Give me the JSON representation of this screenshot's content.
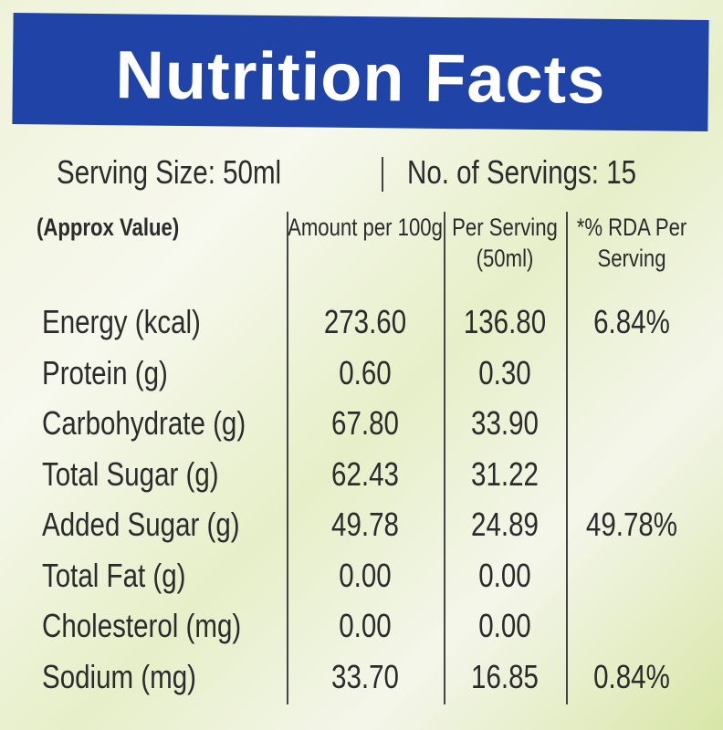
{
  "header": {
    "title": "Nutrition Facts"
  },
  "serving": {
    "size": "Serving Size: 50ml",
    "count": "No. of Servings: 15"
  },
  "table": {
    "columns": [
      "(Approx Value)",
      "Amount per 100g",
      "Per Serving (50ml)",
      "*% RDA Per Serving"
    ],
    "rows": [
      [
        "Energy (kcal)",
        "273.60",
        "136.80",
        "6.84%"
      ],
      [
        "Protein (g)",
        "0.60",
        "0.30"
      ],
      [
        "Carbohydrate (g)",
        "67.80",
        "33.90"
      ],
      [
        "Total Sugar (g)",
        "62.43",
        "31.22"
      ],
      [
        "Added Sugar (g)",
        "49.78",
        "24.89",
        "49.78%"
      ],
      [
        "Total Fat (g)",
        "0.00",
        "0.00"
      ],
      [
        "Cholesterol (mg)",
        "0.00",
        "0.00"
      ],
      [
        "Sodium (mg)",
        "33.70",
        "16.85",
        "0.84%"
      ]
    ]
  }
}
